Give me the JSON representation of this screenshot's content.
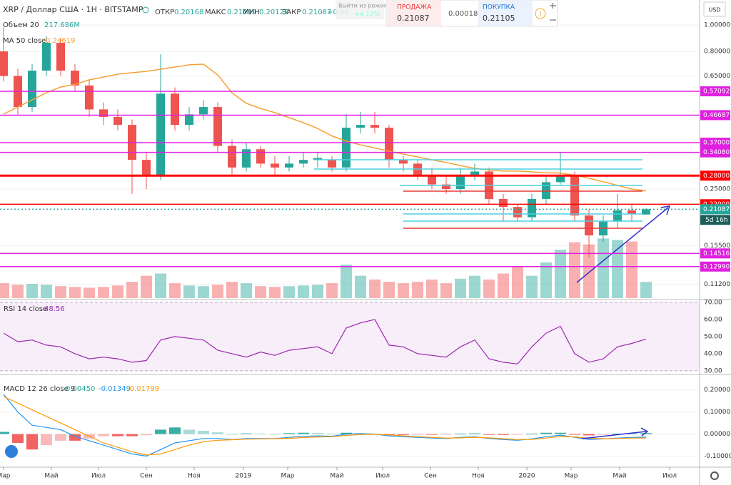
{
  "header": {
    "change": "+0.00",
    "exit_tooltip": "Выйти из режима",
    "change_pct": "+4.12%"
  },
  "trade_panel": {
    "sell_label": "ПРОДАЖА",
    "sell_price": 0.21087,
    "spread": 0.00018,
    "buy_label": "ПОКУПКА",
    "buy_price": 0.21105
  },
  "axis_currency": "USD",
  "countdown": "5d 16h",
  "chart_data": [
    {
      "type": "candlestick",
      "title": "XRP / Доллар США · 1H · BITSTAMP",
      "ohlc_legend": [
        {
          "name": "ОТКР",
          "value": 0.20168
        },
        {
          "name": "МАКС",
          "value": 0.21299
        },
        {
          "name": "МИН",
          "value": 0.20127
        },
        {
          "name": "ЗАКР",
          "value": 0.21087
        }
      ],
      "log_scale": true,
      "ylim": [
        0.0995,
        1.235
      ],
      "xlim": [
        -0.25,
        48.75
      ],
      "grid": true,
      "yticks": [
        {
          "value": 1,
          "label": "1.00000"
        },
        {
          "value": 0.8,
          "label": "0.80000"
        },
        {
          "value": 0.65,
          "label": "0.65000"
        },
        {
          "value": 0.25,
          "label": "0.25000"
        },
        {
          "value": 0.155,
          "label": "0.15500"
        },
        {
          "value": 0.112,
          "label": "0.11200"
        }
      ],
      "up_color": "#26a69a",
      "down_color": "#ef5350",
      "open": [
        0.8,
        0.65,
        0.5,
        0.68,
        0.86,
        0.68,
        0.6,
        0.49,
        0.46,
        0.43,
        0.32,
        0.28,
        0.56,
        0.43,
        0.47,
        0.5,
        0.36,
        0.3,
        0.35,
        0.31,
        0.3,
        0.31,
        0.32,
        0.32,
        0.3,
        0.42,
        0.43,
        0.42,
        0.32,
        0.31,
        0.28,
        0.26,
        0.25,
        0.28,
        0.29,
        0.23,
        0.215,
        0.197,
        0.23,
        0.265,
        0.28,
        0.2,
        0.169,
        0.19,
        0.209,
        0.20168
      ],
      "high": [
        0.98,
        0.69,
        0.72,
        0.91,
        0.89,
        0.72,
        0.63,
        0.52,
        0.49,
        0.45,
        0.34,
        0.78,
        0.59,
        0.5,
        0.53,
        0.52,
        0.38,
        0.37,
        0.36,
        0.33,
        0.33,
        0.34,
        0.34,
        0.33,
        0.47,
        0.48,
        0.48,
        0.43,
        0.33,
        0.32,
        0.3,
        0.28,
        0.3,
        0.31,
        0.3,
        0.24,
        0.22,
        0.24,
        0.28,
        0.34,
        0.29,
        0.21,
        0.2,
        0.24,
        0.22,
        0.21299
      ],
      "low": [
        0.62,
        0.47,
        0.48,
        0.65,
        0.65,
        0.57,
        0.46,
        0.43,
        0.41,
        0.24,
        0.25,
        0.27,
        0.41,
        0.41,
        0.45,
        0.34,
        0.28,
        0.29,
        0.3,
        0.28,
        0.29,
        0.3,
        0.3,
        0.29,
        0.29,
        0.4,
        0.4,
        0.3,
        0.29,
        0.27,
        0.25,
        0.24,
        0.24,
        0.27,
        0.22,
        0.19,
        0.19,
        0.19,
        0.22,
        0.26,
        0.19,
        0.14,
        0.16,
        0.18,
        0.19,
        0.20127
      ],
      "close": [
        0.65,
        0.5,
        0.68,
        0.86,
        0.68,
        0.6,
        0.49,
        0.46,
        0.43,
        0.32,
        0.28,
        0.56,
        0.43,
        0.47,
        0.5,
        0.36,
        0.3,
        0.35,
        0.31,
        0.3,
        0.31,
        0.32,
        0.325,
        0.3,
        0.42,
        0.43,
        0.42,
        0.32,
        0.31,
        0.28,
        0.26,
        0.25,
        0.28,
        0.29,
        0.23,
        0.215,
        0.197,
        0.23,
        0.265,
        0.28,
        0.2,
        0.169,
        0.19,
        0.209,
        0.203,
        0.21087
      ],
      "volume": {
        "name": "Объем 20",
        "value_label": "217.686M",
        "ylim": [
          0,
          4000
        ],
        "values": [
          200,
          180,
          190,
          180,
          160,
          150,
          140,
          150,
          170,
          220,
          300,
          330,
          200,
          170,
          160,
          180,
          220,
          200,
          160,
          150,
          160,
          170,
          180,
          200,
          450,
          300,
          250,
          220,
          200,
          220,
          250,
          200,
          260,
          300,
          250,
          330,
          420,
          300,
          480,
          650,
          750,
          720,
          800,
          780,
          760,
          217.686
        ]
      },
      "ma": {
        "name": "MA 50 close",
        "color": "#f7a035",
        "values": [
          0.471,
          0.5,
          0.531,
          0.564,
          0.592,
          0.606,
          0.629,
          0.644,
          0.66,
          0.668,
          0.676,
          0.688,
          0.701,
          0.714,
          0.718,
          0.656,
          0.564,
          0.516,
          0.494,
          0.477,
          0.457,
          0.438,
          0.417,
          0.392,
          0.375,
          0.363,
          0.354,
          0.344,
          0.336,
          0.328,
          0.32,
          0.313,
          0.305,
          0.298,
          0.294,
          0.291,
          0.291,
          0.289,
          0.287,
          0.286,
          0.281,
          0.274,
          0.266,
          0.258,
          0.25,
          0.24619
        ]
      },
      "levels": [
        {
          "value": 0.57092,
          "color": "#e020e0"
        },
        {
          "value": 0.46687,
          "color": "#e020e0"
        },
        {
          "value": 0.37,
          "label": "0.37000",
          "color": "#e020e0"
        },
        {
          "value": 0.3408,
          "label": "0.34080",
          "color": "#e020e0"
        },
        {
          "value": 0.28,
          "label": "0.28000",
          "color": "#ff0000",
          "width": 3
        },
        {
          "value": 0.22,
          "label": "0.22000",
          "color": "#ff0000"
        },
        {
          "value": 0.21087,
          "color": "#26a69a",
          "dashed": true
        },
        {
          "value": 0.14516,
          "color": "#e020e0"
        },
        {
          "value": 0.1299,
          "label": "0.12990",
          "color": "#e020e0"
        }
      ]
    },
    {
      "type": "line",
      "name": "RSI 14 close",
      "color": "#9c27b0",
      "ylim": [
        28.3,
        71.2
      ],
      "xlim": [
        -0.25,
        48.75
      ],
      "yticks": [
        {
          "value": 70,
          "label": "70.00"
        },
        {
          "value": 60,
          "label": "60.00"
        },
        {
          "value": 50,
          "label": "50.00"
        },
        {
          "value": 40,
          "label": "40.00"
        },
        {
          "value": 30,
          "label": "30.00"
        }
      ],
      "values": [
        52,
        47,
        48,
        45,
        44,
        40,
        37,
        38,
        37,
        35,
        36,
        48,
        50,
        49,
        48,
        42,
        40,
        38,
        41,
        39,
        42,
        43,
        44,
        40,
        55,
        58,
        60,
        45,
        44,
        40,
        39,
        38,
        44,
        48,
        37,
        35,
        34,
        44,
        52,
        56,
        40,
        35,
        37,
        44,
        46,
        48.56
      ]
    },
    {
      "type": "macd",
      "name": "MACD 12 26 close 9",
      "ylim": [
        -0.15,
        0.267
      ],
      "xlim": [
        -0.25,
        48.75
      ],
      "yticks": [
        {
          "value": 0.2,
          "label": "0.20000"
        },
        {
          "value": 0.1,
          "label": "0.10000"
        },
        {
          "value": 0,
          "label": "0.00000"
        },
        {
          "value": -0.1,
          "label": "-0.10000"
        }
      ],
      "histogram": {
        "up_color": "#26a69a",
        "down_color": "#ef5350",
        "value_label": "0.00450",
        "values": [
          0.01,
          -0.04,
          -0.07,
          -0.05,
          -0.03,
          -0.03,
          -0.02,
          -0.01,
          -0.01,
          -0.01,
          -0.005,
          0.02,
          0.03,
          0.02,
          0.015,
          0.008,
          0.001,
          0.003,
          0.002,
          0.001,
          0.004,
          0.006,
          0.005,
          0.002,
          0.006,
          0.004,
          0.001,
          -0.004,
          -0.004,
          -0.003,
          -0.003,
          -0.002,
          0.002,
          0.003,
          -0.003,
          -0.004,
          -0.003,
          0.002,
          0.006,
          0.006,
          -0.002,
          -0.006,
          -0.001,
          0.002,
          0.003,
          0.0045
        ]
      },
      "macd": {
        "color": "#2196f3",
        "values": [
          0.18,
          0.1,
          0.04,
          0.03,
          0.02,
          -0.01,
          -0.03,
          -0.05,
          -0.07,
          -0.09,
          -0.1,
          -0.07,
          -0.04,
          -0.03,
          -0.02,
          -0.02,
          -0.025,
          -0.02,
          -0.02,
          -0.02,
          -0.015,
          -0.01,
          -0.008,
          -0.01,
          0,
          0.002,
          0,
          -0.008,
          -0.012,
          -0.015,
          -0.018,
          -0.02,
          -0.015,
          -0.012,
          -0.02,
          -0.025,
          -0.028,
          -0.022,
          -0.012,
          -0.005,
          -0.015,
          -0.025,
          -0.022,
          -0.018,
          -0.015,
          -0.01349
        ]
      },
      "signal": {
        "color": "#ff9800",
        "values": [
          0.17,
          0.14,
          0.11,
          0.08,
          0.05,
          0.02,
          -0.01,
          -0.04,
          -0.06,
          -0.08,
          -0.095,
          -0.09,
          -0.07,
          -0.05,
          -0.035,
          -0.028,
          -0.026,
          -0.023,
          -0.022,
          -0.021,
          -0.019,
          -0.016,
          -0.013,
          -0.012,
          -0.006,
          -0.002,
          -0.001,
          -0.004,
          -0.008,
          -0.012,
          -0.015,
          -0.018,
          -0.017,
          -0.015,
          -0.017,
          -0.021,
          -0.025,
          -0.024,
          -0.018,
          -0.011,
          -0.013,
          -0.019,
          -0.021,
          -0.02,
          -0.018,
          -0.01799
        ]
      },
      "xticks": [
        {
          "value": 0,
          "label": "Мар"
        },
        {
          "value": 3.35,
          "label": "Май"
        },
        {
          "value": 6.65,
          "label": "Июл"
        },
        {
          "value": 10,
          "label": "Сен"
        },
        {
          "value": 13.35,
          "label": "Ноя"
        },
        {
          "value": 16.8,
          "label": "2019"
        },
        {
          "value": 19.9,
          "label": "Мар"
        },
        {
          "value": 23.35,
          "label": "Май"
        },
        {
          "value": 26.55,
          "label": "Июл"
        },
        {
          "value": 29.9,
          "label": "Сен"
        },
        {
          "value": 33.25,
          "label": "Ноя"
        },
        {
          "value": 36.65,
          "label": "2020"
        },
        {
          "value": 39.75,
          "label": "Мар"
        },
        {
          "value": 43.15,
          "label": "Май"
        },
        {
          "value": 46.65,
          "label": "Июл"
        }
      ]
    }
  ]
}
